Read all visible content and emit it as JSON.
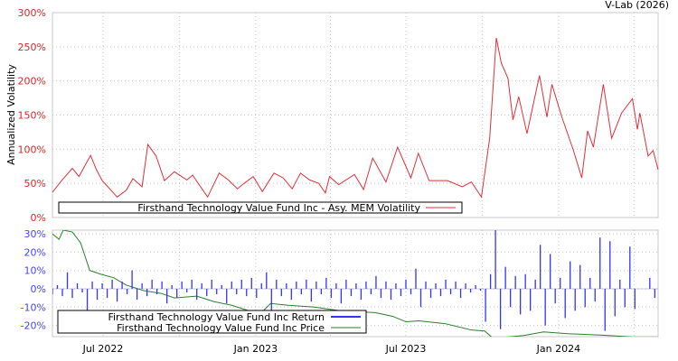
{
  "watermark": "V-Lab (2026)",
  "colors": {
    "volatility": "#e0303a",
    "return": "#3333ff",
    "price": "#2e7d2e",
    "top_ticks": "#d62728",
    "bottom_ticks": "#4444ff",
    "grid": "#c8c8c8"
  },
  "chart_data": [
    {
      "type": "line",
      "ylabel": "Annualized Volatility",
      "x_unit": "days since 2022-05-02",
      "ylim": [
        0,
        300
      ],
      "yticks": [
        0,
        50,
        100,
        150,
        200,
        250,
        300
      ],
      "ytick_labels": [
        "0%",
        "50%",
        "100%",
        "150%",
        "200%",
        "250%",
        "300%"
      ],
      "grid": true,
      "legend": {
        "placement": "bottom-left",
        "entries": [
          "Firsthand Technology Value Fund Inc - Asy. MEM Volatility"
        ]
      },
      "series": [
        {
          "name": "Firsthand Technology Value Fund Inc - Asy. MEM Volatility",
          "x": [
            0,
            11,
            24,
            32,
            46,
            53,
            60,
            78,
            89,
            97,
            108,
            115,
            125,
            135,
            147,
            162,
            169,
            187,
            201,
            212,
            223,
            231,
            242,
            253,
            267,
            278,
            289,
            299,
            310,
            321,
            329,
            334,
            345,
            364,
            375,
            386,
            402,
            416,
            432,
            441,
            454,
            465,
            476,
            494,
            505,
            517,
            527,
            535,
            541,
            549,
            555,
            562,
            572,
            587,
            596,
            602,
            614,
            628,
            638,
            645,
            652,
            664,
            674,
            686,
            699,
            705,
            708,
            718,
            724,
            730
          ],
          "y": [
            37,
            54,
            72,
            60,
            91,
            70,
            54,
            30,
            40,
            57,
            45,
            107,
            90,
            54,
            67,
            55,
            62,
            30,
            65,
            55,
            42,
            50,
            60,
            38,
            65,
            58,
            42,
            65,
            55,
            50,
            36,
            60,
            48,
            63,
            41,
            87,
            52,
            103,
            58,
            94,
            54,
            54,
            54,
            45,
            52,
            30,
            116,
            263,
            226,
            204,
            143,
            177,
            123,
            208,
            147,
            195,
            147,
            98,
            58,
            127,
            103,
            195,
            116,
            153,
            174,
            129,
            153,
            90,
            98,
            70
          ]
        }
      ]
    },
    {
      "type": "bar",
      "x_unit": "days since 2022-05-02",
      "ylim": [
        -27,
        32
      ],
      "yticks": [
        -20,
        -10,
        0,
        10,
        20,
        30
      ],
      "ytick_labels": [
        "-20%",
        "-10%",
        "0%",
        "10%",
        "20%",
        "30%"
      ],
      "xtick_days": [
        61,
        245,
        426,
        610
      ],
      "xtick_labels": [
        "Jul 2022",
        "Jan 2023",
        "Jul 2023",
        "Jan 2024"
      ],
      "grid_days": [
        61,
        153,
        245,
        335,
        426,
        518,
        610,
        701
      ],
      "legend": {
        "placement": "bottom-left",
        "entries": [
          "Firsthand Technology Value Fund Inc Return",
          "Firsthand Technology Value Fund Inc Price"
        ]
      },
      "returns": {
        "name": "Firsthand Technology Value Fund Inc Return",
        "start_day": 0,
        "step_days": 6,
        "values": [
          -3,
          2,
          -4,
          9,
          -5,
          3,
          -2,
          -12,
          4,
          -6,
          3,
          -5,
          5,
          -7,
          4,
          -3,
          10,
          -6,
          3,
          -4,
          5,
          -3,
          4,
          -8,
          2,
          -5,
          4,
          -2,
          5,
          -6,
          3,
          -4,
          5,
          -3,
          2,
          -8,
          4,
          -3,
          5,
          -4,
          6,
          -5,
          3,
          9,
          -12,
          5,
          -4,
          3,
          -6,
          4,
          -3,
          5,
          -7,
          4,
          -3,
          6,
          -5,
          3,
          -8,
          5,
          -4,
          3,
          -6,
          4,
          -3,
          7,
          -5,
          4,
          -6,
          3,
          -4,
          5,
          -3,
          11,
          -10,
          4,
          -5,
          3,
          -4,
          5,
          -3,
          4,
          -5,
          3,
          -2,
          2,
          -1,
          -18,
          8,
          32,
          -22,
          12,
          -10,
          7,
          -14,
          8,
          -12,
          5,
          24,
          -20,
          19,
          -8,
          6,
          -16,
          15,
          -12,
          13,
          -10,
          6,
          -7,
          28,
          -23,
          26,
          -15,
          5,
          -10,
          23,
          -11,
          0,
          0,
          6,
          -5
        ]
      },
      "price": {
        "name": "Firsthand Technology Value Fund Inc Price",
        "x": [
          0,
          8,
          13,
          24,
          34,
          45,
          58,
          74,
          89,
          110,
          131,
          147,
          174,
          195,
          216,
          237,
          253,
          263,
          284,
          316,
          347,
          389,
          410,
          426,
          442,
          473,
          505,
          521,
          531,
          568,
          592,
          621,
          663,
          700,
          730
        ],
        "y": [
          30,
          27,
          32,
          31,
          25,
          10,
          8,
          6,
          2,
          -1,
          -2.5,
          -5,
          -4,
          -7,
          -9,
          -12,
          -12.5,
          -8,
          -9,
          -10,
          -12,
          -13,
          -15,
          -18,
          -17.5,
          -19,
          -22.5,
          -23,
          -27,
          -25.5,
          -23.5,
          -24.5,
          -25.3,
          -26.3,
          -26.3
        ]
      }
    }
  ]
}
